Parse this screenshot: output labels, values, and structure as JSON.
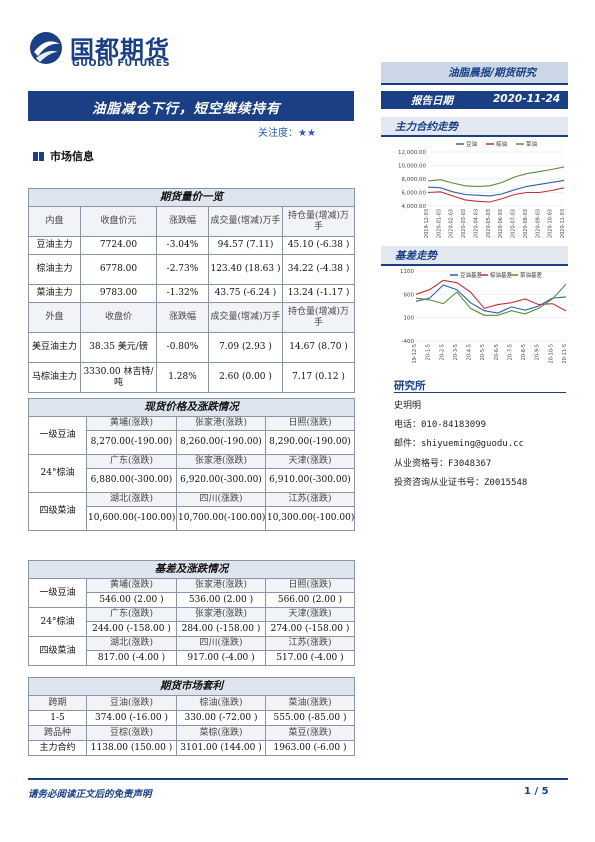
{
  "header": {
    "logo_cn": "国都期货",
    "logo_en": "GUODU FUTURES",
    "category": "油脂晨报/期货研究",
    "report_date_label": "报告日期",
    "report_date": "2020-11-24"
  },
  "title": "油脂减仓下行，短空继续持有",
  "attention_label": "关注度：",
  "attention_stars": "★★",
  "market_info_label": "市场信息",
  "futures": {
    "heading": "期货量价一览",
    "domestic_headers": [
      "内盘",
      "收盘价元",
      "涨跌幅",
      "成交量(增减)万手",
      "持仓量(增减)万手"
    ],
    "domestic_rows": [
      [
        "豆油主力",
        "7724.00",
        "-3.04%",
        "94.57 (7.11)",
        "45.10 (-6.38 )"
      ],
      [
        "棕油主力",
        "6778.00",
        "-2.73%",
        "123.40 (18.63 )",
        "34.22 (-4.38 )"
      ],
      [
        "菜油主力",
        "9783.00",
        "-1.32%",
        "43.75 (-6.24 )",
        "13.24 (-1.17 )"
      ]
    ],
    "foreign_headers": [
      "外盘",
      "收盘价",
      "涨跌幅",
      "成交量(增减)万手",
      "持仓量(增减)万手"
    ],
    "foreign_rows": [
      [
        "美豆油主力",
        "38.35 美元/磅",
        "-0.80%",
        "7.09 (2.93 )",
        "14.67 (8.70 )"
      ],
      [
        "马棕油主力",
        "3330.00 林吉特/吨",
        "1.28%",
        "2.60 (0.00 )",
        "7.17 (0.12 )"
      ]
    ]
  },
  "spot": {
    "heading": "现货价格及涨跌情况",
    "groups": [
      {
        "name": "一级豆油",
        "locs": [
          "黄埔(涨跌)",
          "张家港(涨跌)",
          "日照(涨跌)"
        ],
        "vals": [
          "8,270.00(-190.00)",
          "8,260.00(-190.00)",
          "8,290.00(-190.00)"
        ]
      },
      {
        "name": "24°棕油",
        "locs": [
          "广东(涨跌)",
          "张家港(涨跌)",
          "天津(涨跌)"
        ],
        "vals": [
          "6,880.00(-300.00)",
          "6,920.00(-300.00)",
          "6,910.00(-300.00)"
        ]
      },
      {
        "name": "四级菜油",
        "locs": [
          "湖北(涨跌)",
          "四川(涨跌)",
          "江苏(涨跌)"
        ],
        "vals": [
          "10,600.00(-100.00)",
          "10,700.00(-100.00)",
          "10,300.00(-100.00)"
        ]
      }
    ]
  },
  "basis": {
    "heading": "基差及涨跌情况",
    "groups": [
      {
        "name": "一级豆油",
        "locs": [
          "黄埔(涨跌)",
          "张家港(涨跌)",
          "日照(涨跌)"
        ],
        "vals": [
          "546.00 (2.00 )",
          "536.00 (2.00 )",
          "566.00 (2.00 )"
        ]
      },
      {
        "name": "24°棕油",
        "locs": [
          "广东(涨跌)",
          "张家港(涨跌)",
          "天津(涨跌)"
        ],
        "vals": [
          "244.00 (-158.00 )",
          "284.00 (-158.00 )",
          "274.00 (-158.00 )"
        ]
      },
      {
        "name": "四级菜油",
        "locs": [
          "湖北(涨跌)",
          "四川(涨跌)",
          "江苏(涨跌)"
        ],
        "vals": [
          "817.00 (-4.00 )",
          "917.00 (-4.00 )",
          "517.00 (-4.00 )"
        ]
      }
    ]
  },
  "arbitrage": {
    "heading": "期货市场套利",
    "row1_head": [
      "跨期",
      "豆油(涨跌)",
      "棕油(涨跌)",
      "菜油(涨跌)"
    ],
    "row1_vals": [
      "1-5",
      "374.00 (-16.00 )",
      "330.00 (-72.00 )",
      "555.00 (-85.00 )"
    ],
    "row2_head": [
      "跨品种",
      "豆棕(涨跌)",
      "菜棕(涨跌)",
      "菜豆(涨跌)"
    ],
    "row2_vals": [
      "主力合约",
      "1138.00 (150.00 )",
      "3101.00 (144.00 )",
      "1963.00 (-6.00 )"
    ]
  },
  "right": {
    "main_trend_label": "主力合约走势",
    "basis_trend_label": "基差走势",
    "research_label": "研究所",
    "analyst": "史玥明",
    "phone": "电话：010-84183099",
    "email": "邮件：shiyueming@guodu.cc",
    "qualification": "从业资格号：F3048367",
    "consult": "投资咨询从业证书号：Z0015548"
  },
  "chart_data": [
    {
      "type": "line",
      "title": "",
      "x": [
        "2019-12-03",
        "2020-01-03",
        "2020-02-03",
        "2020-03-03",
        "2020-04-03",
        "2020-05-03",
        "2020-06-03",
        "2020-07-03",
        "2020-08-03",
        "2020-09-03",
        "2020-10-03",
        "2020-11-03"
      ],
      "ylim": [
        4000,
        12000
      ],
      "yticks": [
        "12,000.00",
        "10,000.00",
        "8,000.00",
        "6,000.00",
        "4,000.00"
      ],
      "series": [
        {
          "name": "豆油",
          "color": "#2e5fb3",
          "values": [
            6800,
            6700,
            6100,
            5700,
            5600,
            5500,
            5800,
            6400,
            6900,
            7200,
            7500,
            7800
          ]
        },
        {
          "name": "棕油",
          "color": "#c0303a",
          "values": [
            6000,
            6100,
            5500,
            4900,
            4700,
            4600,
            5100,
            5700,
            6000,
            6000,
            6300,
            6700
          ]
        },
        {
          "name": "菜油",
          "color": "#5b8a3a",
          "values": [
            7700,
            7900,
            7400,
            7000,
            6900,
            7000,
            7500,
            8300,
            8800,
            9100,
            9400,
            9800
          ]
        }
      ]
    },
    {
      "type": "line",
      "title": "",
      "x": [
        "19-12-5",
        "20-1-5",
        "20-2-5",
        "20-3-5",
        "20-4-5",
        "20-5-5",
        "20-6-5",
        "20-7-5",
        "20-8-5",
        "20-9-5",
        "20-10-5",
        "20-11-5"
      ],
      "ylim": [
        -400,
        1100
      ],
      "yticks": [
        "1100",
        "600",
        "100",
        "-400"
      ],
      "series": [
        {
          "name": "豆油基差",
          "color": "#2e5fb3",
          "values": [
            450,
            520,
            800,
            700,
            420,
            250,
            200,
            330,
            260,
            350,
            520,
            546
          ]
        },
        {
          "name": "棕油基差",
          "color": "#c0303a",
          "values": [
            600,
            700,
            900,
            850,
            650,
            300,
            380,
            420,
            500,
            380,
            400,
            244
          ]
        },
        {
          "name": "菜油基差",
          "color": "#5b8a3a",
          "values": [
            520,
            480,
            400,
            650,
            300,
            150,
            150,
            250,
            180,
            300,
            500,
            817
          ]
        }
      ]
    }
  ],
  "footer": {
    "disclaimer": "请务必阅读正文后的免责声明",
    "page": "1 / 5"
  }
}
